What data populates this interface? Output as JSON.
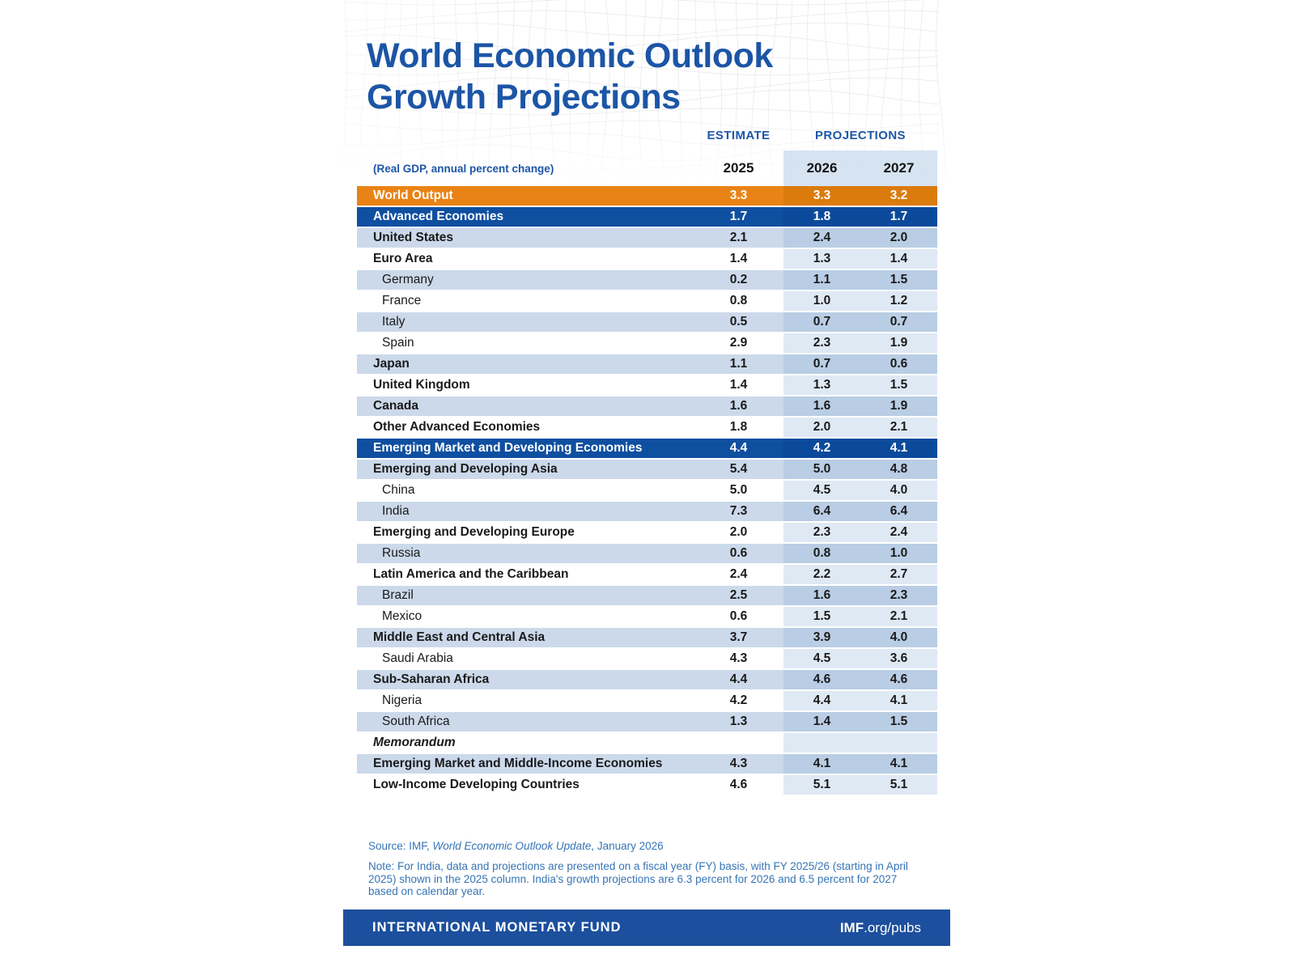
{
  "header": {
    "title_line1": "World Economic Outlook",
    "title_line2": "Growth Projections",
    "subtitle": "(Real GDP, annual percent change)",
    "estimate_label": "ESTIMATE",
    "projections_label": "PROJECTIONS",
    "years": [
      "2025",
      "2026",
      "2027"
    ]
  },
  "chart_data": {
    "type": "table",
    "title": "World Economic Outlook Growth Projections",
    "unit": "Real GDP, annual percent change",
    "columns": [
      "2025",
      "2026",
      "2027"
    ],
    "column_groups": [
      {
        "label": "ESTIMATE",
        "columns": [
          "2025"
        ]
      },
      {
        "label": "PROJECTIONS",
        "columns": [
          "2026",
          "2027"
        ]
      }
    ],
    "rows": [
      {
        "label": "World Output",
        "style": "orange",
        "indent": false,
        "values": [
          "3.3",
          "3.3",
          "3.2"
        ]
      },
      {
        "label": "Advanced Economies",
        "style": "blue",
        "indent": false,
        "values": [
          "1.7",
          "1.8",
          "1.7"
        ]
      },
      {
        "label": "United States",
        "style": "light",
        "indent": false,
        "values": [
          "2.1",
          "2.4",
          "2.0"
        ]
      },
      {
        "label": "Euro Area",
        "style": "white",
        "indent": false,
        "values": [
          "1.4",
          "1.3",
          "1.4"
        ]
      },
      {
        "label": "Germany",
        "style": "light",
        "indent": true,
        "values": [
          "0.2",
          "1.1",
          "1.5"
        ]
      },
      {
        "label": "France",
        "style": "white",
        "indent": true,
        "values": [
          "0.8",
          "1.0",
          "1.2"
        ]
      },
      {
        "label": "Italy",
        "style": "light",
        "indent": true,
        "values": [
          "0.5",
          "0.7",
          "0.7"
        ]
      },
      {
        "label": "Spain",
        "style": "white",
        "indent": true,
        "values": [
          "2.9",
          "2.3",
          "1.9"
        ]
      },
      {
        "label": "Japan",
        "style": "light",
        "indent": false,
        "values": [
          "1.1",
          "0.7",
          "0.6"
        ]
      },
      {
        "label": "United Kingdom",
        "style": "white",
        "indent": false,
        "values": [
          "1.4",
          "1.3",
          "1.5"
        ]
      },
      {
        "label": "Canada",
        "style": "light",
        "indent": false,
        "values": [
          "1.6",
          "1.6",
          "1.9"
        ]
      },
      {
        "label": "Other Advanced Economies",
        "style": "white",
        "indent": false,
        "values": [
          "1.8",
          "2.0",
          "2.1"
        ]
      },
      {
        "label": "Emerging Market and Developing Economies",
        "style": "blue",
        "indent": false,
        "values": [
          "4.4",
          "4.2",
          "4.1"
        ]
      },
      {
        "label": "Emerging and Developing Asia",
        "style": "light",
        "indent": false,
        "values": [
          "5.4",
          "5.0",
          "4.8"
        ]
      },
      {
        "label": "China",
        "style": "white",
        "indent": true,
        "values": [
          "5.0",
          "4.5",
          "4.0"
        ]
      },
      {
        "label": "India",
        "style": "light",
        "indent": true,
        "values": [
          "7.3",
          "6.4",
          "6.4"
        ]
      },
      {
        "label": "Emerging and Developing Europe",
        "style": "white",
        "indent": false,
        "values": [
          "2.0",
          "2.3",
          "2.4"
        ]
      },
      {
        "label": "Russia",
        "style": "light",
        "indent": true,
        "values": [
          "0.6",
          "0.8",
          "1.0"
        ]
      },
      {
        "label": "Latin America and the Caribbean",
        "style": "white",
        "indent": false,
        "values": [
          "2.4",
          "2.2",
          "2.7"
        ]
      },
      {
        "label": "Brazil",
        "style": "light",
        "indent": true,
        "values": [
          "2.5",
          "1.6",
          "2.3"
        ]
      },
      {
        "label": "Mexico",
        "style": "white",
        "indent": true,
        "values": [
          "0.6",
          "1.5",
          "2.1"
        ]
      },
      {
        "label": "Middle East and Central Asia",
        "style": "light",
        "indent": false,
        "values": [
          "3.7",
          "3.9",
          "4.0"
        ]
      },
      {
        "label": "Saudi Arabia",
        "style": "white",
        "indent": true,
        "values": [
          "4.3",
          "4.5",
          "3.6"
        ]
      },
      {
        "label": "Sub-Saharan Africa",
        "style": "light",
        "indent": false,
        "values": [
          "4.4",
          "4.6",
          "4.6"
        ]
      },
      {
        "label": "Nigeria",
        "style": "white",
        "indent": true,
        "values": [
          "4.2",
          "4.4",
          "4.1"
        ]
      },
      {
        "label": "South Africa",
        "style": "light",
        "indent": true,
        "values": [
          "1.3",
          "1.4",
          "1.5"
        ]
      },
      {
        "label": "Memorandum",
        "style": "memo",
        "indent": false,
        "values": null
      },
      {
        "label": "Emerging Market and Middle-Income Economies",
        "style": "light",
        "indent": false,
        "values": [
          "4.3",
          "4.1",
          "4.1"
        ]
      },
      {
        "label": "Low-Income Developing Countries",
        "style": "white",
        "indent": false,
        "values": [
          "4.6",
          "5.1",
          "5.1"
        ]
      }
    ]
  },
  "footnotes": {
    "source_prefix": "Source: IMF, ",
    "source_italic": "World Economic Outlook Update",
    "source_suffix": ", January 2026",
    "note": "Note: For India, data and projections are presented on a fiscal year (FY) basis, with FY 2025/26 (starting in April 2025) shown in the 2025 column. India's growth projections are 6.3 percent for 2026 and 6.5 percent for 2027 based on calendar year."
  },
  "footer": {
    "left": "INTERNATIONAL MONETARY FUND",
    "right_bold": "IMF",
    "right_regular": ".org/pubs"
  },
  "colors": {
    "title_blue": "#1c55a6",
    "header_label_blue": "#1e57a7",
    "world_output_orange": "#ea8315",
    "world_output_orange_band": "#db7b0c",
    "group_row_blue": "#0f4fa0",
    "group_row_blue_band": "#0b4a9b",
    "row_light_blue": "#cbd9ea",
    "row_light_blue_band": "#b9cde4",
    "row_white_band": "#dfe9f4",
    "footnote_blue": "#3674b5",
    "footer_blue": "#1c4f9d"
  }
}
